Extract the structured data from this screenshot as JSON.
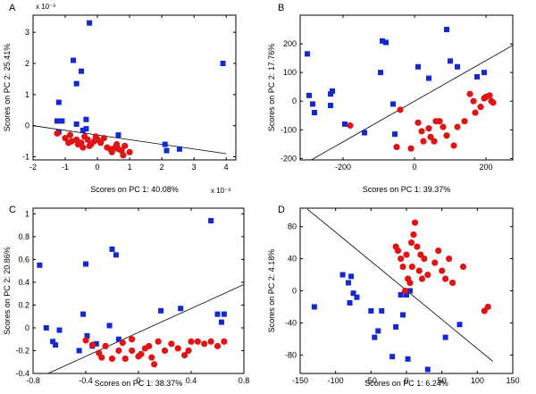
{
  "colors": {
    "class_a": "#1428d2",
    "class_b": "#e01414",
    "separator": "#000000"
  },
  "chart_data": [
    {
      "type": "scatter",
      "panel_label": "A",
      "xlabel": "Scores on PC 1: 40.08%",
      "ylabel": "Scores on PC 2: 25.41%",
      "x_multiplier": "x 10⁻³",
      "y_multiplier": "x 10⁻³",
      "xlim": [
        -2,
        4.3
      ],
      "ylim": [
        -1.1,
        3.55
      ],
      "xticks": [
        -2,
        -1,
        0,
        1,
        2,
        3,
        4
      ],
      "xtick_labels": [
        "-2",
        "-1",
        "0",
        "1",
        "2",
        "3",
        "4"
      ],
      "yticks": [
        -1,
        0,
        1,
        2,
        3
      ],
      "ytick_labels": [
        "-1",
        "0",
        "1",
        "2",
        "3"
      ],
      "separator_line": [
        [
          -2,
          0.0
        ],
        [
          4,
          -0.9
        ]
      ],
      "series": [
        {
          "name": "class_a",
          "marker": "square",
          "x": [
            -0.25,
            -0.75,
            -0.5,
            -0.65,
            -0.35,
            -1.2,
            -1.1,
            -0.35,
            -0.65,
            -1.2,
            -0.45,
            -1.25,
            0.65,
            2.1,
            2.15,
            2.55,
            3.9
          ],
          "y": [
            3.3,
            2.1,
            1.75,
            1.35,
            0.2,
            0.75,
            0.15,
            -0.1,
            0.05,
            -0.2,
            -0.15,
            0.15,
            -0.3,
            -0.6,
            -0.8,
            -0.75,
            2.0
          ]
        },
        {
          "name": "class_b",
          "marker": "circle",
          "x": [
            -1.25,
            -1.0,
            -0.9,
            -0.8,
            -0.65,
            -0.6,
            -0.5,
            -0.4,
            -0.3,
            -0.2,
            -0.1,
            0.0,
            0.1,
            0.2,
            -0.45,
            -0.25,
            0.3,
            0.45,
            0.55,
            0.65,
            0.75,
            0.85,
            1.0,
            0.4,
            0.6,
            -0.85,
            -0.05,
            0.8
          ],
          "y": [
            -0.25,
            -0.4,
            -0.55,
            -0.5,
            -0.45,
            -0.6,
            -0.55,
            -0.35,
            -0.45,
            -0.6,
            -0.5,
            -0.45,
            -0.55,
            -0.4,
            -0.7,
            -0.65,
            -0.7,
            -0.85,
            -0.7,
            -0.75,
            -0.8,
            -0.65,
            -0.85,
            -0.75,
            -0.6,
            -0.3,
            -0.35,
            -0.95
          ]
        }
      ]
    },
    {
      "type": "scatter",
      "panel_label": "B",
      "xlabel": "Scores on PC 1: 39.37%",
      "ylabel": "Scores on PC 2: 17.76%",
      "xlim": [
        -320,
        275
      ],
      "ylim": [
        -205,
        300
      ],
      "xticks": [
        -200,
        0,
        200
      ],
      "xtick_labels": [
        "-200",
        "0",
        "200"
      ],
      "yticks": [
        -200,
        -100,
        0,
        100,
        200
      ],
      "ytick_labels": [
        "-200",
        "-100",
        "0",
        "100",
        "200"
      ],
      "separator_line": [
        [
          -310,
          -220
        ],
        [
          275,
          195
        ]
      ],
      "series": [
        {
          "name": "class_a",
          "marker": "square",
          "x": [
            -300,
            -295,
            -285,
            -280,
            -235,
            -230,
            -235,
            -195,
            -140,
            -90,
            -80,
            -95,
            -60,
            -55,
            10,
            40,
            90,
            100,
            120,
            175,
            195
          ],
          "y": [
            165,
            20,
            -10,
            -40,
            25,
            35,
            -15,
            -80,
            -110,
            210,
            205,
            100,
            -10,
            -115,
            120,
            80,
            250,
            140,
            120,
            85,
            100
          ]
        },
        {
          "name": "class_b",
          "marker": "circle",
          "x": [
            -180,
            -40,
            -50,
            -10,
            10,
            20,
            40,
            45,
            55,
            60,
            70,
            80,
            90,
            110,
            120,
            140,
            155,
            165,
            170,
            185,
            195,
            200,
            210,
            215,
            220,
            25
          ],
          "y": [
            -85,
            -30,
            -160,
            -165,
            -75,
            -105,
            -95,
            -125,
            -140,
            -70,
            -70,
            -90,
            -120,
            -155,
            -90,
            -70,
            25,
            0,
            -40,
            -20,
            10,
            15,
            20,
            0,
            -5,
            -140
          ]
        }
      ]
    },
    {
      "type": "scatter",
      "panel_label": "C",
      "xlabel": "Scores on PC 1: 38.37%",
      "ylabel": "Scores on PC 2: 20.86%",
      "xlim": [
        -0.8,
        0.8
      ],
      "ylim": [
        -0.4,
        1.05
      ],
      "xticks": [
        -0.8,
        -0.4,
        0,
        0.4,
        0.8
      ],
      "xtick_labels": [
        "-0.8",
        "-0.4",
        "0",
        "0.4",
        "0.8"
      ],
      "yticks": [
        -0.4,
        -0.2,
        0,
        0.2,
        0.4,
        0.6,
        0.8,
        1
      ],
      "ytick_labels": [
        "-0.4",
        "-0.2",
        "0",
        "0.2",
        "0.4",
        "0.6",
        "0.8",
        "1"
      ],
      "separator_line": [
        [
          -0.8,
          -0.46
        ],
        [
          0.8,
          0.38
        ]
      ],
      "series": [
        {
          "name": "class_a",
          "marker": "square",
          "x": [
            -0.75,
            -0.7,
            -0.65,
            -0.63,
            -0.45,
            -0.42,
            -0.4,
            -0.39,
            -0.35,
            -0.32,
            -0.22,
            -0.2,
            -0.17,
            -0.15,
            0.17,
            0.32,
            0.55,
            0.6,
            0.63,
            0.65,
            -0.6
          ],
          "y": [
            0.55,
            0.0,
            -0.12,
            -0.15,
            -0.2,
            0.12,
            0.56,
            -0.07,
            -0.16,
            -0.14,
            0.02,
            0.69,
            0.64,
            -0.1,
            0.15,
            0.17,
            0.94,
            0.12,
            0.05,
            0.12,
            -0.02
          ]
        },
        {
          "name": "class_b",
          "marker": "circle",
          "x": [
            -0.4,
            -0.35,
            -0.3,
            -0.25,
            -0.2,
            -0.15,
            -0.12,
            -0.1,
            -0.05,
            0.0,
            0.05,
            0.1,
            0.12,
            0.15,
            0.2,
            0.25,
            0.3,
            0.35,
            0.4,
            0.45,
            0.5,
            0.55,
            0.6,
            0.65,
            -0.28,
            -0.05,
            0.02,
            0.08,
            0.38
          ],
          "y": [
            -0.11,
            -0.15,
            -0.22,
            -0.16,
            -0.27,
            -0.2,
            -0.13,
            -0.27,
            -0.2,
            -0.25,
            -0.18,
            -0.26,
            -0.32,
            -0.12,
            -0.2,
            -0.14,
            -0.18,
            -0.24,
            -0.12,
            -0.12,
            -0.14,
            -0.12,
            -0.16,
            -0.12,
            -0.26,
            -0.1,
            -0.23,
            -0.16,
            -0.2
          ]
        }
      ]
    },
    {
      "type": "scatter",
      "panel_label": "D",
      "xlabel": "Scores on PC 1: 6.24%",
      "ylabel": "Scores on PC 2: 4.18%",
      "xlim": [
        -150,
        150
      ],
      "ylim": [
        -103,
        103
      ],
      "xticks": [
        -150,
        -100,
        -50,
        0,
        50,
        100,
        150
      ],
      "xtick_labels": [
        "-150",
        "-100",
        "-50",
        "0",
        "50",
        "100",
        "150"
      ],
      "yticks": [
        -80,
        -40,
        0,
        40,
        80
      ],
      "ytick_labels": [
        "-80",
        "-40",
        "0",
        "40",
        "80"
      ],
      "separator_line": [
        [
          -140,
          102
        ],
        [
          122,
          -88
        ]
      ],
      "series": [
        {
          "name": "class_a",
          "marker": "square",
          "x": [
            -130,
            -90,
            -82,
            -75,
            -80,
            -70,
            -50,
            -45,
            -40,
            -35,
            -20,
            -15,
            -5,
            -8,
            2,
            0,
            5,
            30,
            55,
            75,
            -78
          ],
          "y": [
            -20,
            20,
            10,
            -3,
            -15,
            -8,
            -25,
            -58,
            -50,
            -25,
            -82,
            -45,
            -30,
            -5,
            -85,
            -5,
            0,
            -98,
            -58,
            -42,
            18
          ]
        },
        {
          "name": "class_b",
          "marker": "circle",
          "x": [
            -15,
            -12,
            -8,
            -5,
            0,
            2,
            5,
            7,
            10,
            12,
            15,
            18,
            20,
            22,
            25,
            30,
            40,
            45,
            50,
            55,
            60,
            65,
            80,
            110,
            115,
            8,
            -2
          ],
          "y": [
            55,
            50,
            40,
            30,
            45,
            15,
            10,
            60,
            70,
            85,
            55,
            25,
            45,
            15,
            40,
            20,
            35,
            50,
            25,
            15,
            40,
            10,
            30,
            -25,
            -20,
            30,
            0
          ]
        }
      ]
    }
  ]
}
